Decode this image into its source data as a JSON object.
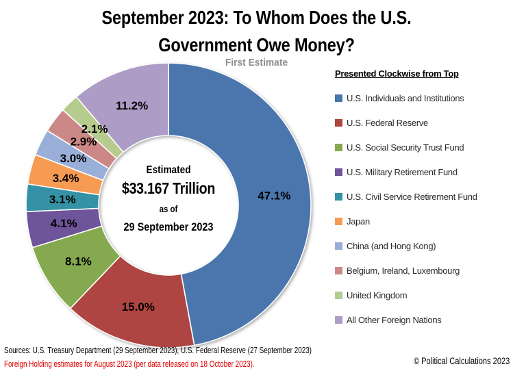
{
  "title": {
    "line1": "September 2023: To Whom Does the U.S.",
    "line2": "Government Owe Money?"
  },
  "subtitle": "First Estimate",
  "donut_center": {
    "line1": "Estimated",
    "line2": "$33.167 Trillion",
    "line3": "as of",
    "line4": "29 September 2023"
  },
  "legend": {
    "heading": "Presented Clockwise from Top"
  },
  "footer": {
    "sources": "Sources: U.S. Treasury Department (29 September 2023), U.S. Federal Reserve (27 September 2023)",
    "note": "Foreign Holding estimates for August 2023 (per data released on 18 October 2023).",
    "note_color": "#e00000",
    "copyright": "© Political Calculations 2023"
  },
  "chart_data": {
    "type": "pie",
    "subtype": "donut",
    "title": "September 2023: To Whom Does the U.S. Government Owe Money?",
    "subtitle": "First Estimate",
    "center_label": "Estimated $33.167 Trillion as of 29 September 2023",
    "legend_title": "Presented Clockwise from Top",
    "legend_position": "right",
    "direction": "clockwise",
    "start_angle_deg": 0,
    "donut_hole_ratio": 0.49,
    "unit": "%",
    "categories": [
      "U.S. Individuals and Institutions",
      "U.S. Federal Reserve",
      "U.S. Social Security Trust Fund",
      "U.S. Military Retirement Fund",
      "U.S. Civil Service Retirement Fund",
      "Japan",
      "China (and Hong Kong)",
      "Belgium, Ireland, Luxembourg",
      "United Kingdom",
      "All Other Foreign Nations"
    ],
    "values": [
      47.1,
      15.0,
      8.1,
      4.1,
      3.1,
      3.4,
      3.0,
      2.9,
      2.1,
      11.2
    ],
    "labels": [
      "47.1%",
      "15.0%",
      "8.1%",
      "4.1%",
      "3.1%",
      "3.4%",
      "3.0%",
      "2.9%",
      "2.1%",
      "11.2%"
    ],
    "colors": [
      "#4a76ad",
      "#ae4542",
      "#84a94e",
      "#6e5499",
      "#3591a5",
      "#f79b53",
      "#99afd7",
      "#cc8886",
      "#b6cb8e",
      "#ac9cc6"
    ]
  }
}
